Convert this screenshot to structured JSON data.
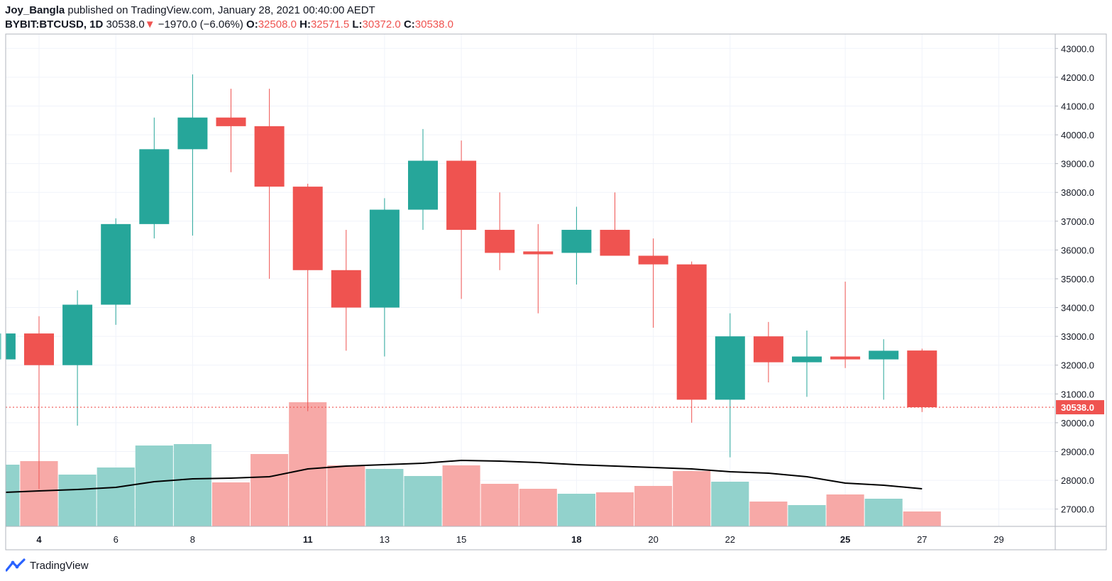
{
  "header": {
    "author": "Joy_Bangla",
    "published_text": "published on TradingView.com, January 28, 2021 00:40:00 AEDT",
    "symbol": "BYBIT:BTCUSD, 1D",
    "last": "30538.0",
    "change": "−1970.0 (−6.06%)",
    "open_label": "O:",
    "open": "32508.0",
    "high_label": "H:",
    "high": "32571.5",
    "low_label": "L:",
    "low": "30372.0",
    "close_label": "C:",
    "close": "30538.0"
  },
  "footer": {
    "brand": "TradingView",
    "icon": "tradingview-logo-icon"
  },
  "colors": {
    "up": "#26a69a",
    "down": "#ef5350",
    "up_volume": "#92d2cc",
    "down_volume": "#f7a9a7",
    "ma_line": "#000000",
    "price_line": "#ef5350"
  },
  "chart_data": {
    "type": "candlestick",
    "price_axis": {
      "ylim": [
        26400,
        43500
      ],
      "ticks": [
        27000,
        28000,
        29000,
        30000,
        31000,
        32000,
        33000,
        34000,
        35000,
        36000,
        37000,
        38000,
        39000,
        40000,
        41000,
        42000,
        43000
      ],
      "tick_labels": [
        "27000.0",
        "28000.0",
        "29000.0",
        "30000.0",
        "31000.0",
        "32000.0",
        "33000.0",
        "34000.0",
        "35000.0",
        "36000.0",
        "37000.0",
        "38000.0",
        "39000.0",
        "40000.0",
        "41000.0",
        "42000.0",
        "43000.0"
      ]
    },
    "time_axis": {
      "labels": [
        {
          "day": 4,
          "text": "4",
          "bold": true
        },
        {
          "day": 6,
          "text": "6",
          "bold": false
        },
        {
          "day": 8,
          "text": "8",
          "bold": false
        },
        {
          "day": 11,
          "text": "11",
          "bold": true
        },
        {
          "day": 13,
          "text": "13",
          "bold": false
        },
        {
          "day": 15,
          "text": "15",
          "bold": false
        },
        {
          "day": 18,
          "text": "18",
          "bold": true
        },
        {
          "day": 20,
          "text": "20",
          "bold": false
        },
        {
          "day": 22,
          "text": "22",
          "bold": false
        },
        {
          "day": 25,
          "text": "25",
          "bold": true
        },
        {
          "day": 27,
          "text": "27",
          "bold": false
        },
        {
          "day": 29,
          "text": "29",
          "bold": false
        }
      ]
    },
    "candles": [
      {
        "day": 3,
        "o": 32200,
        "h": 33100,
        "l": 32200,
        "c": 33100
      },
      {
        "day": 4,
        "o": 33100,
        "h": 33700,
        "l": 27700,
        "c": 32000
      },
      {
        "day": 5,
        "o": 32000,
        "h": 34600,
        "l": 29900,
        "c": 34100
      },
      {
        "day": 6,
        "o": 34100,
        "h": 37100,
        "l": 33400,
        "c": 36900
      },
      {
        "day": 7,
        "o": 36900,
        "h": 40600,
        "l": 36400,
        "c": 39500
      },
      {
        "day": 8,
        "o": 39500,
        "h": 42100,
        "l": 36500,
        "c": 40600
      },
      {
        "day": 9,
        "o": 40600,
        "h": 41600,
        "l": 38700,
        "c": 40300
      },
      {
        "day": 10,
        "o": 40300,
        "h": 41600,
        "l": 35000,
        "c": 38200
      },
      {
        "day": 11,
        "o": 38200,
        "h": 38300,
        "l": 30400,
        "c": 35300
      },
      {
        "day": 12,
        "o": 35300,
        "h": 36700,
        "l": 32500,
        "c": 34000
      },
      {
        "day": 13,
        "o": 34000,
        "h": 37800,
        "l": 32300,
        "c": 37400
      },
      {
        "day": 14,
        "o": 37400,
        "h": 40200,
        "l": 36700,
        "c": 39100
      },
      {
        "day": 15,
        "o": 39100,
        "h": 39800,
        "l": 34300,
        "c": 36700
      },
      {
        "day": 16,
        "o": 36700,
        "h": 38000,
        "l": 35300,
        "c": 35900
      },
      {
        "day": 17,
        "o": 35950,
        "h": 36900,
        "l": 33800,
        "c": 35850
      },
      {
        "day": 18,
        "o": 35900,
        "h": 37500,
        "l": 34800,
        "c": 36700
      },
      {
        "day": 19,
        "o": 36700,
        "h": 38000,
        "l": 35800,
        "c": 35800
      },
      {
        "day": 20,
        "o": 35800,
        "h": 36400,
        "l": 33300,
        "c": 35500
      },
      {
        "day": 21,
        "o": 35500,
        "h": 35600,
        "l": 30000,
        "c": 30800
      },
      {
        "day": 22,
        "o": 30800,
        "h": 33800,
        "l": 28800,
        "c": 33000
      },
      {
        "day": 23,
        "o": 33000,
        "h": 33500,
        "l": 31400,
        "c": 32100
      },
      {
        "day": 24,
        "o": 32100,
        "h": 33200,
        "l": 30900,
        "c": 32300
      },
      {
        "day": 25,
        "o": 32300,
        "h": 34900,
        "l": 31900,
        "c": 32200
      },
      {
        "day": 26,
        "o": 32200,
        "h": 32900,
        "l": 30800,
        "c": 32500
      },
      {
        "day": 27,
        "o": 32508,
        "h": 32571.5,
        "l": 30372,
        "c": 30538
      }
    ],
    "volume": [
      {
        "day": 3,
        "v": 0.87,
        "up": true
      },
      {
        "day": 4,
        "v": 0.92,
        "up": false
      },
      {
        "day": 5,
        "v": 0.73,
        "up": true
      },
      {
        "day": 6,
        "v": 0.83,
        "up": true
      },
      {
        "day": 7,
        "v": 1.14,
        "up": true
      },
      {
        "day": 8,
        "v": 1.16,
        "up": true
      },
      {
        "day": 9,
        "v": 0.62,
        "up": false
      },
      {
        "day": 10,
        "v": 1.02,
        "up": false
      },
      {
        "day": 11,
        "v": 1.75,
        "up": false
      },
      {
        "day": 12,
        "v": 0.86,
        "up": false
      },
      {
        "day": 13,
        "v": 0.81,
        "up": true
      },
      {
        "day": 14,
        "v": 0.71,
        "up": true
      },
      {
        "day": 15,
        "v": 0.86,
        "up": false
      },
      {
        "day": 16,
        "v": 0.6,
        "up": false
      },
      {
        "day": 17,
        "v": 0.53,
        "up": false
      },
      {
        "day": 18,
        "v": 0.46,
        "up": true
      },
      {
        "day": 19,
        "v": 0.48,
        "up": false
      },
      {
        "day": 20,
        "v": 0.57,
        "up": false
      },
      {
        "day": 21,
        "v": 0.78,
        "up": false
      },
      {
        "day": 22,
        "v": 0.63,
        "up": true
      },
      {
        "day": 23,
        "v": 0.35,
        "up": false
      },
      {
        "day": 24,
        "v": 0.3,
        "up": true
      },
      {
        "day": 25,
        "v": 0.45,
        "up": false
      },
      {
        "day": 26,
        "v": 0.39,
        "up": true
      },
      {
        "day": 27,
        "v": 0.21,
        "up": false
      }
    ],
    "volume_ma": [
      {
        "day": 3,
        "v": 0.48
      },
      {
        "day": 4,
        "v": 0.5
      },
      {
        "day": 5,
        "v": 0.52
      },
      {
        "day": 6,
        "v": 0.55
      },
      {
        "day": 7,
        "v": 0.63
      },
      {
        "day": 8,
        "v": 0.67
      },
      {
        "day": 9,
        "v": 0.68
      },
      {
        "day": 10,
        "v": 0.7
      },
      {
        "day": 11,
        "v": 0.81
      },
      {
        "day": 12,
        "v": 0.85
      },
      {
        "day": 13,
        "v": 0.87
      },
      {
        "day": 14,
        "v": 0.89
      },
      {
        "day": 15,
        "v": 0.93
      },
      {
        "day": 16,
        "v": 0.92
      },
      {
        "day": 17,
        "v": 0.9
      },
      {
        "day": 18,
        "v": 0.87
      },
      {
        "day": 19,
        "v": 0.85
      },
      {
        "day": 20,
        "v": 0.83
      },
      {
        "day": 21,
        "v": 0.81
      },
      {
        "day": 22,
        "v": 0.77
      },
      {
        "day": 23,
        "v": 0.75
      },
      {
        "day": 24,
        "v": 0.7
      },
      {
        "day": 25,
        "v": 0.61
      },
      {
        "day": 26,
        "v": 0.58
      },
      {
        "day": 27,
        "v": 0.53
      }
    ],
    "volume_ylim": [
      0,
      2.0
    ],
    "current_price": {
      "value": 30538,
      "label": "30538.0"
    },
    "grid": true
  }
}
